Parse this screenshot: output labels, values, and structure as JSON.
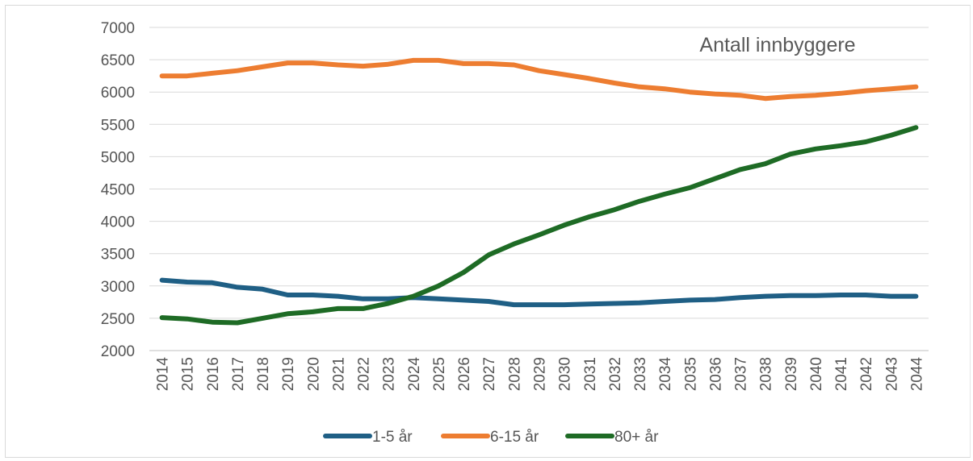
{
  "chart_data": {
    "type": "line",
    "title": "Antall innbyggere",
    "xlabel": "",
    "ylabel": "",
    "ylim": [
      2000,
      7000
    ],
    "yticks": [
      2000,
      2500,
      3000,
      3500,
      4000,
      4500,
      5000,
      5500,
      6000,
      6500,
      7000
    ],
    "x": [
      "2014",
      "2015",
      "2016",
      "2017",
      "2018",
      "2019",
      "2020",
      "2021",
      "2022",
      "2023",
      "2024",
      "2025",
      "2026",
      "2027",
      "2028",
      "2029",
      "2030",
      "2031",
      "2032",
      "2033",
      "2034",
      "2035",
      "2036",
      "2037",
      "2038",
      "2039",
      "2040",
      "2041",
      "2042",
      "2043",
      "2044"
    ],
    "grid": true,
    "legend_position": "bottom",
    "series": [
      {
        "name": "1-5 år",
        "color": "#1f5f85",
        "values": [
          3090,
          3060,
          3050,
          2980,
          2950,
          2860,
          2860,
          2840,
          2800,
          2800,
          2820,
          2800,
          2780,
          2760,
          2710,
          2710,
          2710,
          2720,
          2730,
          2740,
          2760,
          2780,
          2790,
          2820,
          2840,
          2850,
          2850,
          2860,
          2860,
          2840,
          2840
        ]
      },
      {
        "name": "6-15 år",
        "color": "#ed7d31",
        "values": [
          6250,
          6250,
          6290,
          6330,
          6390,
          6450,
          6450,
          6420,
          6400,
          6430,
          6490,
          6490,
          6440,
          6440,
          6420,
          6330,
          6270,
          6210,
          6140,
          6080,
          6050,
          6000,
          5970,
          5950,
          5900,
          5930,
          5950,
          5980,
          6020,
          6050,
          6080
        ]
      },
      {
        "name": "80+ år",
        "color": "#1e6b25",
        "values": [
          2510,
          2490,
          2440,
          2430,
          2500,
          2570,
          2600,
          2650,
          2650,
          2730,
          2840,
          3000,
          3210,
          3480,
          3650,
          3790,
          3940,
          4070,
          4180,
          4310,
          4420,
          4520,
          4660,
          4800,
          4890,
          5040,
          5120,
          5170,
          5230,
          5330,
          5450
        ]
      }
    ]
  }
}
